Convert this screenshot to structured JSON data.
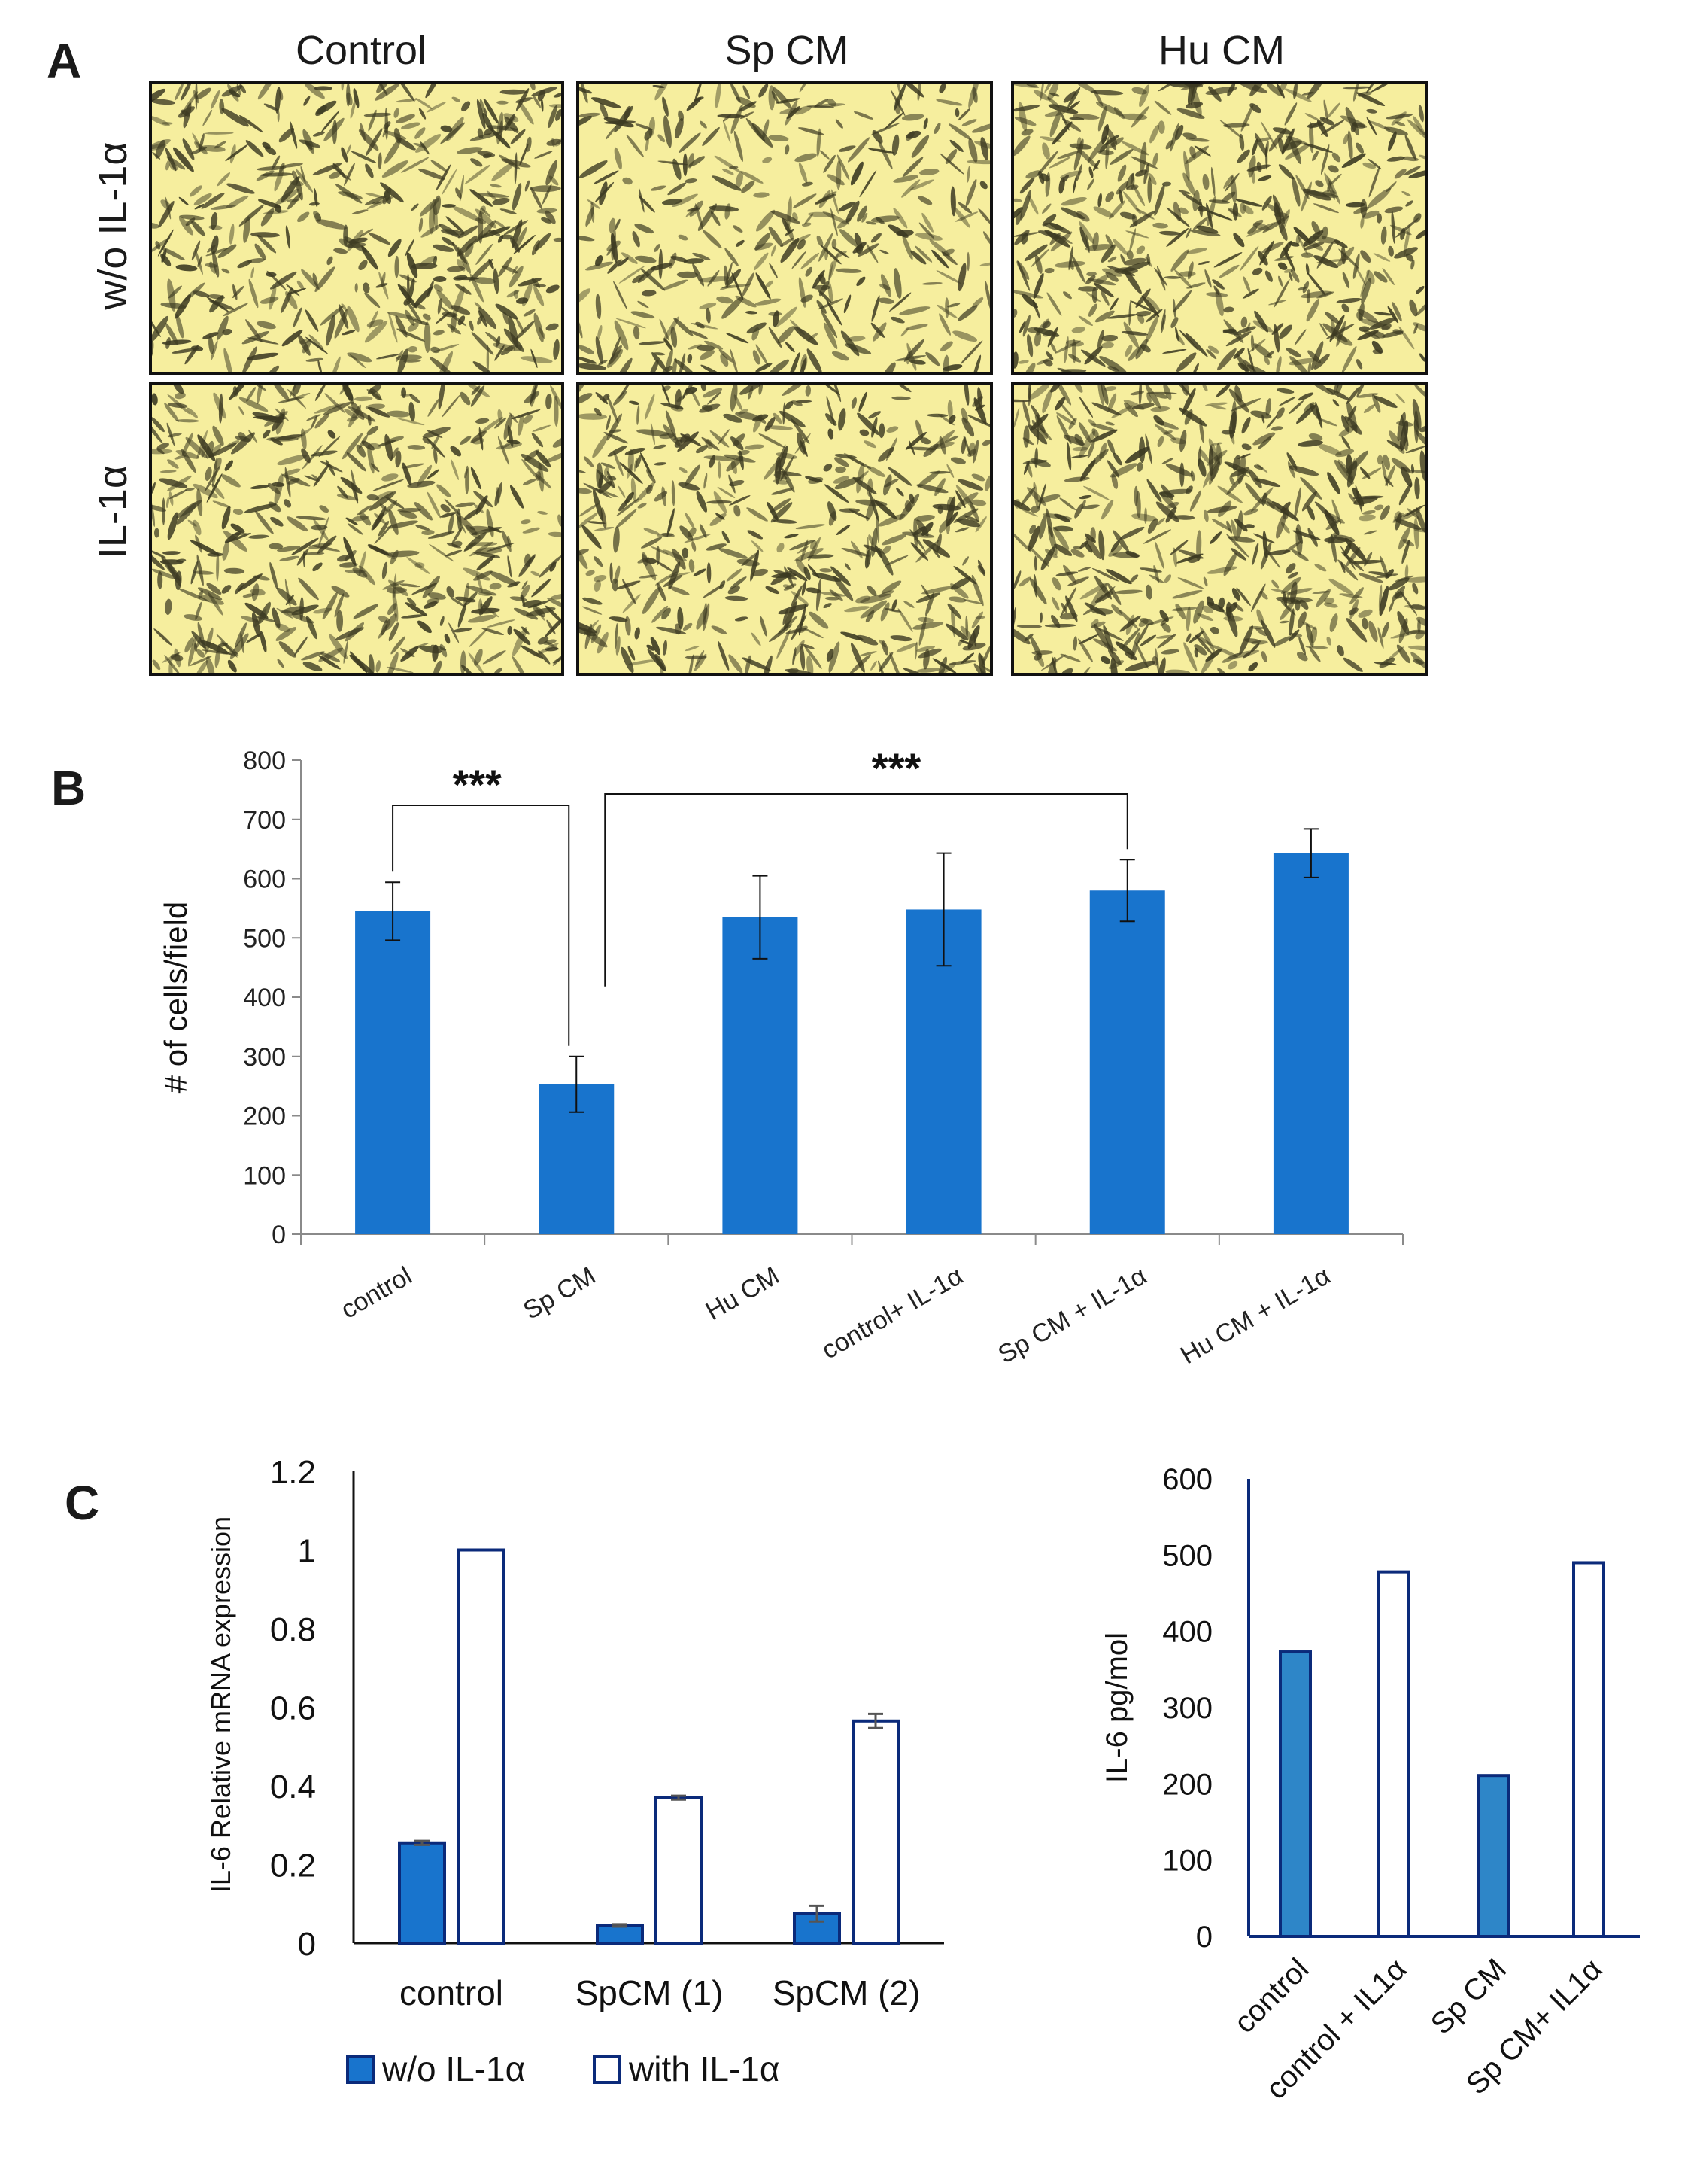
{
  "panel_labels": {
    "a": "A",
    "b": "B",
    "c": "C"
  },
  "panel_a": {
    "columns": [
      "Control",
      "Sp CM",
      "Hu CM"
    ],
    "rows": [
      "w/o IL-1α",
      "IL-1α"
    ],
    "image_fill": "#f6ee9e",
    "cell_color": "#3c3a22",
    "cell_density": [
      [
        0.55,
        0.45,
        0.62
      ],
      [
        0.6,
        0.58,
        0.64
      ]
    ]
  },
  "chart_data": [
    {
      "id": "panel-b",
      "type": "bar",
      "title": "",
      "xlabel": "",
      "ylabel": "# of cells/field",
      "ylim": [
        0,
        800
      ],
      "yticks": [
        0,
        100,
        200,
        300,
        400,
        500,
        600,
        700,
        800
      ],
      "categories": [
        "control",
        "Sp CM",
        "Hu CM",
        "control+ IL-1α",
        "Sp CM + IL-1α",
        "Hu CM + IL-1α"
      ],
      "values": [
        545,
        253,
        535,
        548,
        580,
        643
      ],
      "errors": [
        49,
        47,
        70,
        95,
        52,
        41
      ],
      "color": "#1874cd",
      "significance": [
        {
          "from": 0,
          "to": 1,
          "label": "***"
        },
        {
          "from": 1,
          "to": 4,
          "label": "***"
        }
      ]
    },
    {
      "id": "panel-c-left",
      "type": "bar",
      "title": "",
      "xlabel": "",
      "ylabel": "IL-6  Relative mRNA expression",
      "ylim": [
        0,
        1.2
      ],
      "yticks": [
        "0",
        "0.2",
        "0.4",
        "0.6",
        "0.8",
        "1",
        "1.2"
      ],
      "categories": [
        "control",
        "SpCM (1)",
        "SpCM (2)"
      ],
      "series": [
        {
          "name": "w/o IL-1α",
          "values": [
            0.255,
            0.045,
            0.075
          ],
          "errors": [
            0.005,
            0.003,
            0.02
          ],
          "fill": "#1874cd",
          "stroke": "#0b2a7a"
        },
        {
          "name": "with IL-1α",
          "values": [
            1.0,
            0.37,
            0.565
          ],
          "errors": [
            0.0,
            0.005,
            0.018
          ],
          "fill": "#ffffff",
          "stroke": "#0b2a7a"
        }
      ],
      "legend": "bottom"
    },
    {
      "id": "panel-c-right",
      "type": "bar",
      "title": "",
      "xlabel": "",
      "ylabel": "IL-6 pg/mol",
      "ylim": [
        0,
        600
      ],
      "yticks": [
        0,
        100,
        200,
        300,
        400,
        500,
        600
      ],
      "categories": [
        "control",
        "control + IL1α",
        "Sp CM",
        "Sp CM+ IL1α"
      ],
      "values": [
        373,
        478,
        211,
        490
      ],
      "fills": [
        "#2e86c8",
        "#ffffff",
        "#2e86c8",
        "#ffffff"
      ],
      "stroke": "#0b2a7a"
    }
  ]
}
